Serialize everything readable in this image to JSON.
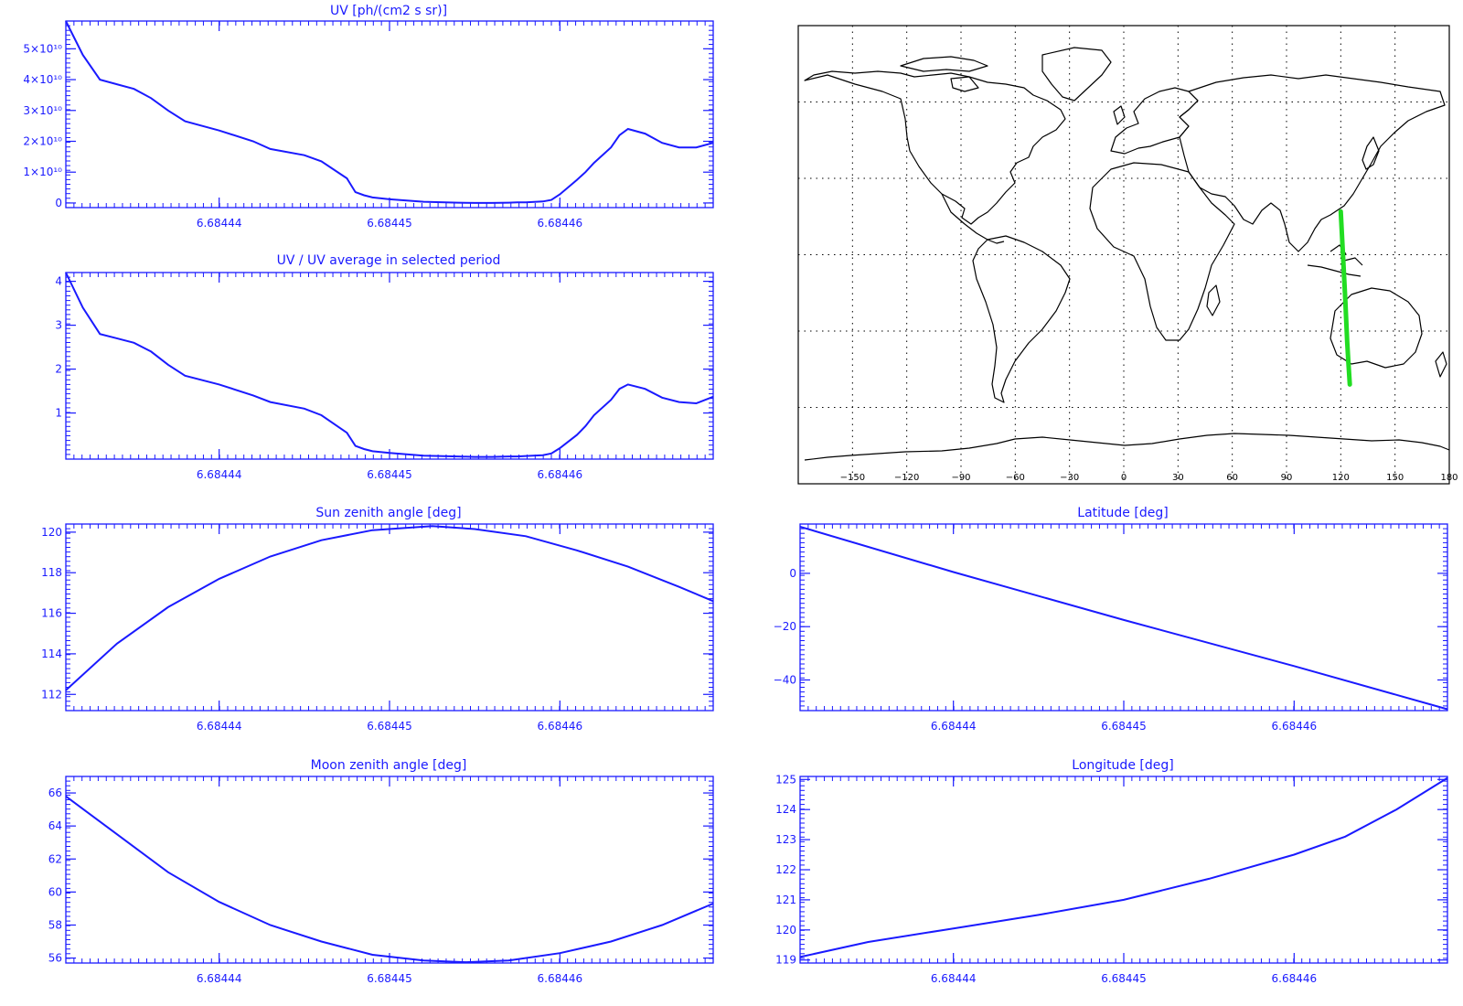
{
  "colors": {
    "plot": "#1a1aff",
    "track": "#22dd22",
    "coast": "#000000",
    "grid": "#000000"
  },
  "charts": [
    {
      "id": "uv",
      "title": "UV [ph/(cm2 s sr)]",
      "yticks": [
        0,
        10000000000.0,
        20000000000.0,
        30000000000.0,
        40000000000.0,
        50000000000.0
      ],
      "ytick_labels": [
        "0",
        "1×10¹⁰",
        "2×10¹⁰",
        "3×10¹⁰",
        "4×10¹⁰",
        "5×10¹⁰"
      ],
      "xticks": [
        6.68444,
        6.68445,
        6.68446
      ],
      "xtick_labels": [
        "6.68444",
        "6.68445",
        "6.68446"
      ]
    },
    {
      "id": "uvnorm",
      "title": "UV / UV average in selected period",
      "yticks": [
        1,
        2,
        3,
        4
      ],
      "ytick_labels": [
        "1",
        "2",
        "3",
        "4"
      ],
      "xticks": [
        6.68444,
        6.68445,
        6.68446
      ],
      "xtick_labels": [
        "6.68444",
        "6.68445",
        "6.68446"
      ]
    },
    {
      "id": "sza",
      "title": "Sun zenith angle [deg]",
      "yticks": [
        112,
        114,
        116,
        118,
        120
      ],
      "ytick_labels": [
        "112",
        "114",
        "116",
        "118",
        "120"
      ],
      "xticks": [
        6.68444,
        6.68445,
        6.68446
      ],
      "xtick_labels": [
        "6.68444",
        "6.68445",
        "6.68446"
      ]
    },
    {
      "id": "mza",
      "title": "Moon zenith angle [deg]",
      "yticks": [
        56,
        58,
        60,
        62,
        64,
        66
      ],
      "ytick_labels": [
        "56",
        "58",
        "60",
        "62",
        "64",
        "66"
      ],
      "xticks": [
        6.68444,
        6.68445,
        6.68446
      ],
      "xtick_labels": [
        "6.68444",
        "6.68445",
        "6.68446"
      ]
    },
    {
      "id": "lat",
      "title": "Latitude [deg]",
      "yticks": [
        -40,
        -20,
        0
      ],
      "ytick_labels": [
        "−40",
        "−20",
        "0"
      ],
      "xticks": [
        6.68444,
        6.68445,
        6.68446
      ],
      "xtick_labels": [
        "6.68444",
        "6.68445",
        "6.68446"
      ]
    },
    {
      "id": "lon",
      "title": "Longitude [deg]",
      "yticks": [
        119,
        120,
        121,
        122,
        123,
        124,
        125
      ],
      "ytick_labels": [
        "119",
        "120",
        "121",
        "122",
        "123",
        "124",
        "125"
      ],
      "xticks": [
        6.68444,
        6.68445,
        6.68446
      ],
      "xtick_labels": [
        "6.68444",
        "6.68445",
        "6.68446"
      ]
    }
  ],
  "chart_data": [
    {
      "type": "line",
      "title": "UV [ph/(cm2 s sr)]",
      "xlim": [
        6.684431,
        6.684469
      ],
      "ylim": [
        -1500000000.0,
        59000000000.0
      ],
      "series": [
        {
          "x": [
            6.684431,
            6.684432,
            6.684433,
            6.684435,
            6.684436,
            6.684437,
            6.684438,
            6.68444,
            6.684442,
            6.684443,
            6.684445,
            6.684446,
            6.6844475,
            6.684448,
            6.6844485,
            6.684449,
            6.68445,
            6.684452,
            6.684454,
            6.684455,
            6.684456,
            6.684457,
            6.6844575,
            6.684458,
            6.684459,
            6.6844595,
            6.68446,
            6.684461,
            6.6844615,
            6.684462,
            6.684463,
            6.6844635,
            6.684464,
            6.684465,
            6.684466,
            6.684467,
            6.684468,
            6.684469
          ],
          "y": [
            59000000000.0,
            48000000000.0,
            40000000000.0,
            37000000000.0,
            34000000000.0,
            30000000000.0,
            26500000000.0,
            23500000000.0,
            20000000000.0,
            17500000000.0,
            15500000000.0,
            13500000000.0,
            8000000000.0,
            3500000000.0,
            2500000000.0,
            1800000000.0,
            1200000000.0,
            400000000.0,
            100000000.0,
            0.0,
            0.0,
            100000000.0,
            200000000.0,
            200000000.0,
            500000000.0,
            1000000000.0,
            2800000000.0,
            7500000000.0,
            10000000000.0,
            13000000000.0,
            18000000000.0,
            22000000000.0,
            24000000000.0,
            22500000000.0,
            19500000000.0,
            18000000000.0,
            18000000000.0,
            19500000000.0
          ]
        }
      ]
    },
    {
      "type": "line",
      "title": "UV / UV average in selected period",
      "xlim": [
        6.684431,
        6.684469
      ],
      "ylim": [
        -0.05,
        4.2
      ],
      "series": [
        {
          "x": [
            6.684431,
            6.684432,
            6.684433,
            6.684435,
            6.684436,
            6.684437,
            6.684438,
            6.68444,
            6.684442,
            6.684443,
            6.684445,
            6.684446,
            6.6844475,
            6.684448,
            6.6844485,
            6.684449,
            6.68445,
            6.684452,
            6.684454,
            6.684455,
            6.684456,
            6.684457,
            6.6844575,
            6.684458,
            6.684459,
            6.6844595,
            6.68446,
            6.684461,
            6.6844615,
            6.684462,
            6.684463,
            6.6844635,
            6.684464,
            6.684465,
            6.684466,
            6.684467,
            6.684468,
            6.684469
          ],
          "y": [
            4.2,
            3.4,
            2.8,
            2.6,
            2.4,
            2.1,
            1.85,
            1.65,
            1.4,
            1.25,
            1.1,
            0.95,
            0.55,
            0.25,
            0.18,
            0.13,
            0.09,
            0.03,
            0.01,
            0.0,
            0.0,
            0.01,
            0.01,
            0.02,
            0.04,
            0.08,
            0.2,
            0.5,
            0.7,
            0.95,
            1.3,
            1.55,
            1.65,
            1.55,
            1.35,
            1.25,
            1.22,
            1.37
          ]
        }
      ]
    },
    {
      "type": "line",
      "title": "Sun zenith angle [deg]",
      "xlim": [
        6.684431,
        6.684469
      ],
      "ylim": [
        111.2,
        120.4
      ],
      "series": [
        {
          "x": [
            6.684431,
            6.684434,
            6.684437,
            6.68444,
            6.684443,
            6.684446,
            6.684449,
            6.6844525,
            6.684455,
            6.684458,
            6.684461,
            6.684464,
            6.684467,
            6.684469
          ],
          "y": [
            112.2,
            114.5,
            116.3,
            117.7,
            118.8,
            119.6,
            120.1,
            120.3,
            120.15,
            119.8,
            119.1,
            118.3,
            117.3,
            116.6
          ]
        }
      ]
    },
    {
      "type": "line",
      "title": "Moon zenith angle [deg]",
      "xlim": [
        6.684431,
        6.684469
      ],
      "ylim": [
        55.7,
        67.0
      ],
      "series": [
        {
          "x": [
            6.684431,
            6.684434,
            6.684437,
            6.68444,
            6.684443,
            6.684446,
            6.684449,
            6.684452,
            6.6844545,
            6.684457,
            6.68446,
            6.684463,
            6.684466,
            6.684469
          ],
          "y": [
            65.8,
            63.5,
            61.2,
            59.4,
            58.0,
            57.0,
            56.2,
            55.85,
            55.75,
            55.85,
            56.3,
            57.0,
            58.0,
            59.3
          ]
        }
      ]
    },
    {
      "type": "line",
      "title": "Latitude [deg]",
      "xlim": [
        6.684431,
        6.684469
      ],
      "ylim": [
        -51.5,
        18.5
      ],
      "series": [
        {
          "x": [
            6.684431,
            6.68444,
            6.68445,
            6.68446,
            6.684469
          ],
          "y": [
            17.5,
            0.5,
            -17.5,
            -34.8,
            -51.0
          ]
        }
      ]
    },
    {
      "type": "line",
      "title": "Longitude [deg]",
      "xlim": [
        6.684431,
        6.684469
      ],
      "ylim": [
        118.9,
        125.1
      ],
      "series": [
        {
          "x": [
            6.684431,
            6.684435,
            6.68444,
            6.684445,
            6.68445,
            6.684455,
            6.68446,
            6.684463,
            6.684466,
            6.684469
          ],
          "y": [
            119.1,
            119.6,
            120.05,
            120.5,
            121.0,
            121.7,
            122.5,
            123.1,
            124.0,
            125.05
          ]
        }
      ]
    }
  ],
  "map": {
    "xtick_labels": [
      "−150",
      "−120",
      "−90",
      "−60",
      "−30",
      "0",
      "30",
      "60",
      "90",
      "120",
      "150",
      "180"
    ],
    "track": {
      "lon": [
        120,
        120.5,
        121,
        121.5,
        122,
        122.5,
        123,
        123.5,
        124.2,
        125
      ],
      "lat": [
        17,
        10,
        3,
        -4,
        -11,
        -18,
        -26,
        -34,
        -42,
        -51
      ]
    }
  }
}
